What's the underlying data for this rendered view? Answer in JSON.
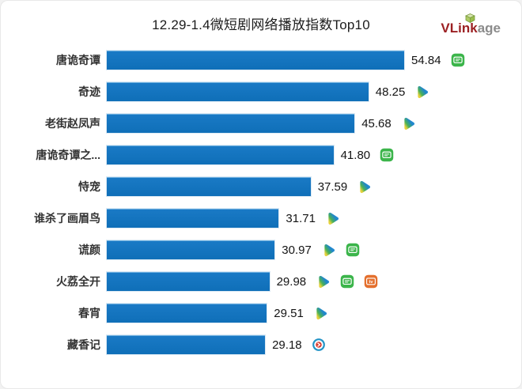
{
  "header": {
    "title": "12.29-1.4微短剧网络播放指数Top10",
    "logo": {
      "part1": "VLink",
      "part2": "age",
      "part1_color": "#9c2023",
      "part2_color": "#8b8b8b",
      "cube_color": "#9abf4e"
    }
  },
  "chart_data": {
    "type": "bar",
    "orientation": "horizontal",
    "title": "12.29-1.4微短剧网络播放指数Top10",
    "categories": [
      "唐诡奇谭",
      "奇迹",
      "老街赵凤声",
      "唐诡奇谭之...",
      "恃宠",
      "谁杀了画眉鸟",
      "谎颜",
      "火荔全开",
      "春宵",
      "藏香记"
    ],
    "values": [
      54.84,
      48.25,
      45.68,
      41.8,
      37.59,
      31.71,
      30.97,
      29.98,
      29.51,
      29.18
    ],
    "value_labels": [
      "54.84",
      "48.25",
      "45.68",
      "41.80",
      "37.59",
      "31.71",
      "30.97",
      "29.98",
      "29.51",
      "29.18"
    ],
    "row_icons": [
      [
        "green-tv"
      ],
      [
        "tencent-video"
      ],
      [
        "tencent-video"
      ],
      [
        "green-tv"
      ],
      [
        "tencent-video"
      ],
      [
        "tencent-video"
      ],
      [
        "tencent-video",
        "green-tv"
      ],
      [
        "tencent-video",
        "green-tv",
        "orange-tv"
      ],
      [
        "tencent-video"
      ],
      [
        "circle-play"
      ]
    ],
    "xlim": [
      0,
      56.5
    ],
    "grid": false,
    "axes_visible": false,
    "legend": "none",
    "bar_color": "#1273bd",
    "label_color": "#333333",
    "value_color": "#141414",
    "icon_colors": {
      "green-tv": "#3cb54b",
      "orange-tv": "#e4702e",
      "tencent-video": [
        "#e9d23c",
        "#49b157",
        "#1f86cc"
      ],
      "circle-play": [
        "#2293c6",
        "#d93a30"
      ]
    }
  }
}
